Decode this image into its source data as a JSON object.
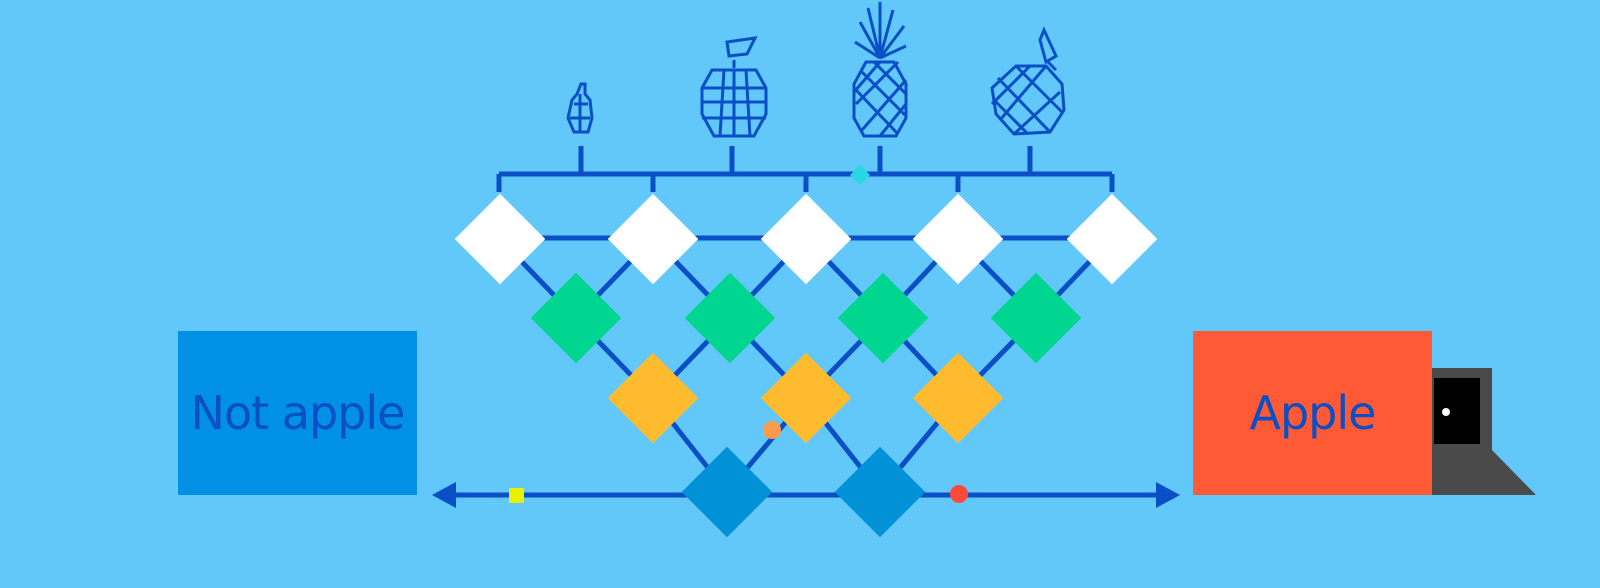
{
  "labels": {
    "not_apple": "Not apple",
    "apple": "Apple"
  },
  "icons": [
    "pear-icon",
    "apple-icon",
    "pineapple-icon",
    "orange-icon"
  ],
  "colors": {
    "background": "#62c8f9",
    "line": "#0b4fc6",
    "input_node": "#ffffff",
    "hidden_node_1": "#00d68f",
    "hidden_node_2": "#ffbb2e",
    "output_node": "#0091d7",
    "not_apple_box": "#0090e6",
    "apple_box": "#ff5a36",
    "laptop": "#4a4a4a"
  }
}
